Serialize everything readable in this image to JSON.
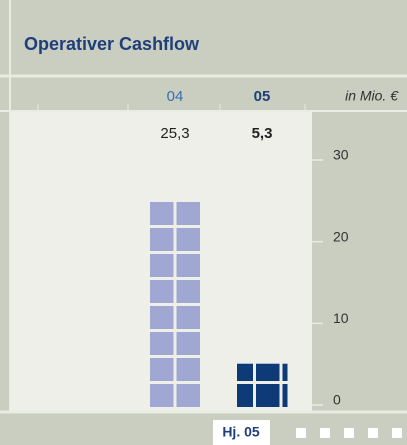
{
  "chart_data": {
    "type": "bar",
    "title": "Operativer Cashflow",
    "unit_label": "in Mio. €",
    "categories": [
      "04",
      "05"
    ],
    "values": [
      25.3,
      5.3
    ],
    "value_labels": [
      "25,3",
      "5,3"
    ],
    "colors": [
      "#9fa7d2",
      "#0e3a78"
    ],
    "ylim": [
      0,
      36
    ],
    "yticks": [
      0,
      10,
      20,
      30
    ],
    "grid": false,
    "footer_label": "Hj. 05"
  }
}
